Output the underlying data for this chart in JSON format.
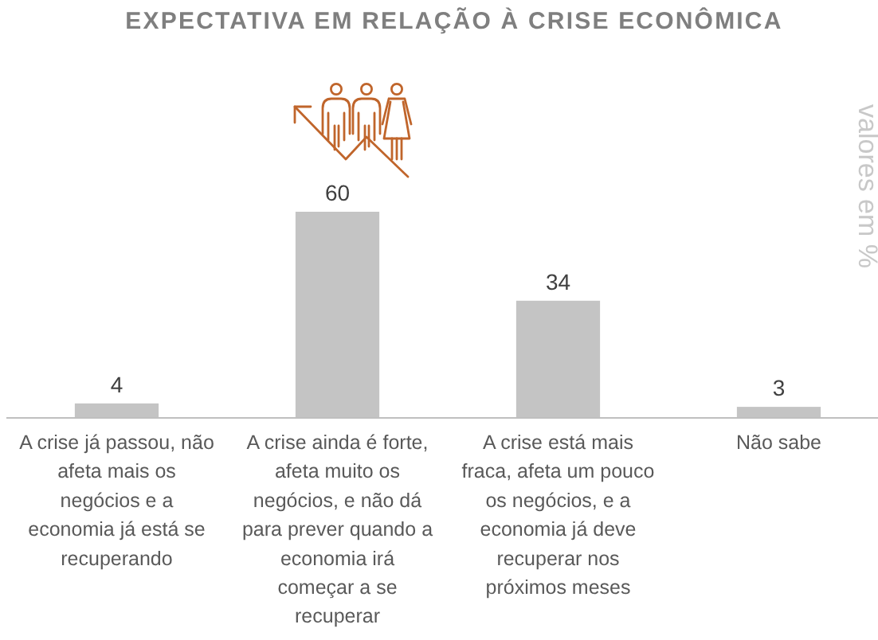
{
  "chart_data": {
    "type": "bar",
    "title": "EXPECTATIVA EM RELAÇÃO À CRISE ECONÔMICA",
    "ylabel": "valores em %",
    "categories": [
      "A crise já passou, não\nafeta mais os\nnegócios e a\neconomia já está se\nrecuperando",
      "A crise ainda é forte,\nafeta muito os\nnegócios, e não dá\npara prever quando a\neconomia irá\ncomeçar a se\nrecuperar",
      "A crise está mais\nfraca, afeta um pouco\nos negócios, e a\neconomia já deve\nrecuperar nos\npróximos meses",
      "Não sabe"
    ],
    "values": [
      4,
      60,
      34,
      3
    ],
    "color": "#c4c4c4",
    "data_labels": true
  }
}
